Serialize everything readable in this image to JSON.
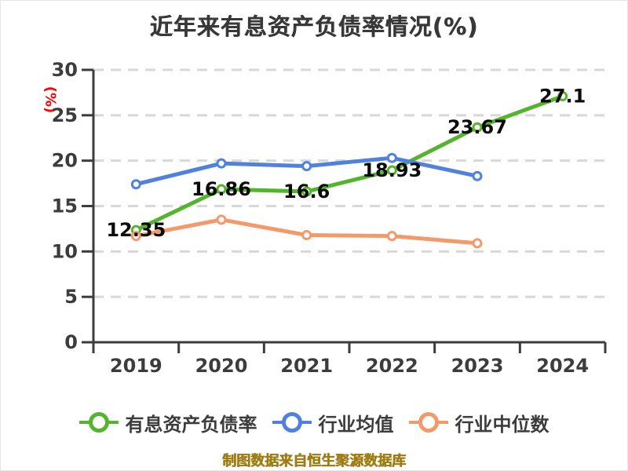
{
  "title": "近年来有息资产负债率情况(%)",
  "y_axis_unit": "(%)",
  "footer": "制图数据来自恒生聚源数据库",
  "colors": {
    "title": "#383838",
    "axis": "#3c3c3c",
    "tick_label": "#3c3c3c",
    "grid": "#d8d8d8",
    "unit_label": "#ff0000",
    "data_label": "#0b0b0b",
    "footer": "#a07d14",
    "series_main": "#55b42e",
    "series_avg": "#5081dd",
    "series_median": "#f49a6a"
  },
  "chart_data": {
    "type": "line",
    "title": "近年来有息资产负债率情况(%)",
    "ylabel": "(%)",
    "categories": [
      "2019",
      "2020",
      "2021",
      "2022",
      "2023",
      "2024"
    ],
    "ylim": [
      0,
      30
    ],
    "yticks": [
      0,
      5,
      10,
      15,
      20,
      25,
      30
    ],
    "grid": true,
    "grid_style": "dashed",
    "legend_position": "bottom",
    "series": [
      {
        "name": "有息资产负债率",
        "color": "#55b42e",
        "values": [
          12.35,
          16.86,
          16.6,
          18.93,
          23.67,
          27.1
        ],
        "labels": [
          "12.35",
          "16.86",
          "16.6",
          "18.93",
          "23.67",
          "27.1"
        ]
      },
      {
        "name": "行业均值",
        "color": "#5081dd",
        "values": [
          17.4,
          19.7,
          19.4,
          20.3,
          18.3,
          null
        ]
      },
      {
        "name": "行业中位数",
        "color": "#f49a6a",
        "values": [
          11.7,
          13.5,
          11.8,
          11.7,
          10.9,
          null
        ]
      }
    ]
  },
  "legend": [
    {
      "label": "有息资产负债率",
      "color": "#55b42e"
    },
    {
      "label": "行业均值",
      "color": "#5081dd"
    },
    {
      "label": "行业中位数",
      "color": "#f49a6a"
    }
  ]
}
